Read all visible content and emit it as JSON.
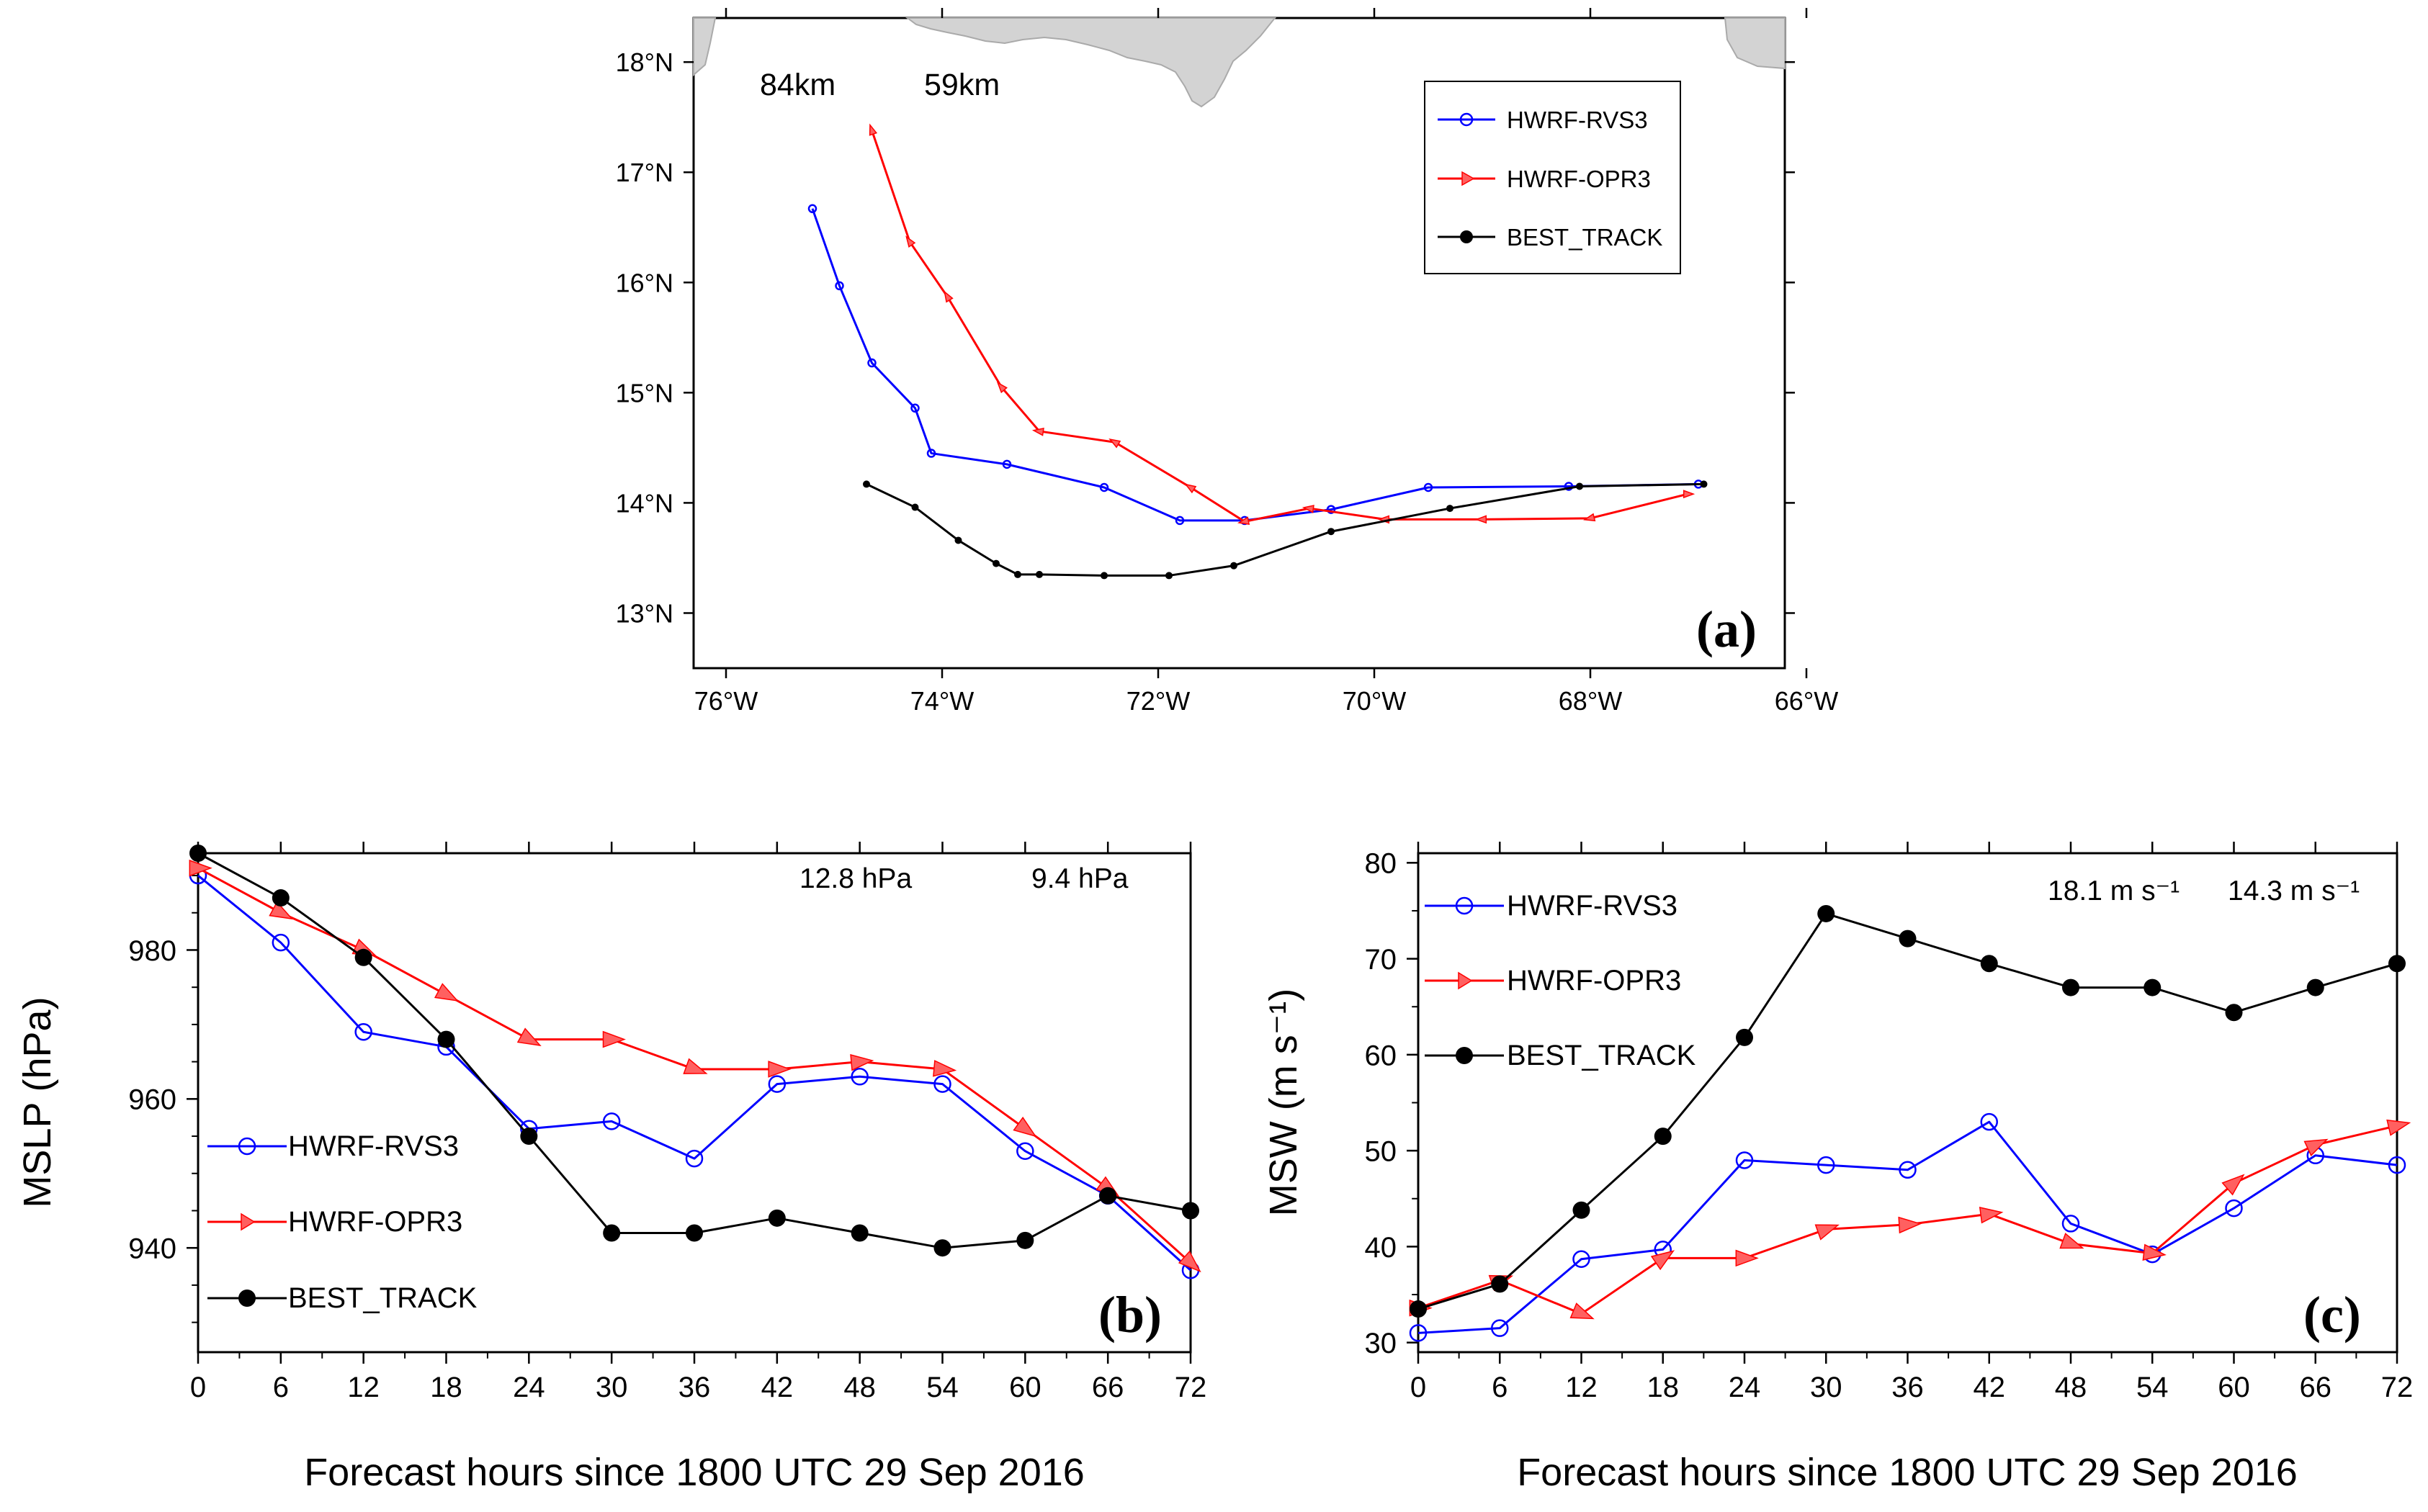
{
  "chart_data": [
    {
      "id": "a",
      "type": "line",
      "panel_label": "(a)",
      "xlim": [
        -76.3,
        -66.2
      ],
      "ylim": [
        12.5,
        18.4
      ],
      "x_ticks": [
        -76,
        -74,
        -72,
        -70,
        -68,
        -66
      ],
      "x_tick_labels": [
        "76°W",
        "74°W",
        "72°W",
        "70°W",
        "68°W",
        "66°W"
      ],
      "y_ticks": [
        13,
        14,
        15,
        16,
        17,
        18
      ],
      "y_tick_labels": [
        "13°N",
        "14°N",
        "15°N",
        "16°N",
        "17°N",
        "18°N"
      ],
      "annotations": [
        {
          "text": "84km",
          "color": "#ff0000"
        },
        {
          "text": "59km",
          "color": "#0000ff"
        }
      ],
      "legend": {
        "placement": "top-right",
        "entries": [
          "HWRF-RVS3",
          "HWRF-OPR3",
          "BEST_TRACK"
        ]
      },
      "series": [
        {
          "name": "HWRF-RVS3",
          "color": "#0000ff",
          "marker": "circle",
          "x": [
            -67.0,
            -68.2,
            -69.5,
            -70.4,
            -71.2,
            -71.8,
            -72.5,
            -73.4,
            -74.1,
            -74.25,
            -74.65,
            -74.95,
            -75.2
          ],
          "y": [
            14.17,
            14.15,
            14.14,
            13.94,
            13.84,
            13.84,
            14.14,
            14.35,
            14.45,
            14.86,
            15.27,
            15.97,
            16.67
          ]
        },
        {
          "name": "HWRF-OPR3",
          "color": "#ff0000",
          "marker": "triangle",
          "x": [
            -67.1,
            -68.0,
            -69.0,
            -69.9,
            -70.6,
            -71.2,
            -71.7,
            -72.4,
            -73.1,
            -73.45,
            -73.95,
            -74.3,
            -74.65
          ],
          "y": [
            14.08,
            13.86,
            13.85,
            13.85,
            13.95,
            13.83,
            14.14,
            14.55,
            14.65,
            15.05,
            15.87,
            16.37,
            17.38
          ]
        },
        {
          "name": "BEST_TRACK",
          "color": "#000000",
          "marker": "dot",
          "x": [
            -66.95,
            -68.1,
            -69.3,
            -70.4,
            -71.3,
            -71.9,
            -72.5,
            -73.1,
            -73.3,
            -73.5,
            -73.85,
            -74.25,
            -74.7
          ],
          "y": [
            14.17,
            14.15,
            13.95,
            13.74,
            13.43,
            13.34,
            13.34,
            13.35,
            13.35,
            13.45,
            13.66,
            13.96,
            14.17
          ]
        }
      ]
    },
    {
      "id": "b",
      "type": "line",
      "panel_label": "(b)",
      "xlabel": "Forecast hours since 1800 UTC 29 Sep 2016",
      "ylabel": "MSLP (hPa)",
      "xlim": [
        0,
        72
      ],
      "ylim": [
        926,
        993
      ],
      "x_ticks": [
        0,
        6,
        12,
        18,
        24,
        30,
        36,
        42,
        48,
        54,
        60,
        66,
        72
      ],
      "y_ticks": [
        940,
        960,
        980
      ],
      "annotations": [
        {
          "text": "12.8 hPa",
          "color": "#ff0000"
        },
        {
          "text": "9.4 hPa",
          "color": "#0000ff"
        }
      ],
      "legend": {
        "placement": "bottom-left",
        "entries": [
          "HWRF-RVS3",
          "HWRF-OPR3",
          "BEST_TRACK"
        ]
      },
      "series": [
        {
          "name": "HWRF-RVS3",
          "color": "#0000ff",
          "marker": "circle",
          "x": [
            0,
            6,
            12,
            18,
            24,
            30,
            36,
            42,
            48,
            54,
            60,
            66,
            72
          ],
          "y": [
            990,
            981,
            969,
            967,
            956,
            957,
            952,
            962,
            963,
            962,
            953,
            947,
            937
          ]
        },
        {
          "name": "HWRF-OPR3",
          "color": "#ff0000",
          "marker": "triangle",
          "x": [
            0,
            6,
            12,
            18,
            24,
            30,
            36,
            42,
            48,
            54,
            60,
            66,
            72
          ],
          "y": [
            991,
            985,
            980,
            974,
            968,
            968,
            964,
            964,
            965,
            964,
            956,
            948,
            938
          ]
        },
        {
          "name": "BEST_TRACK",
          "color": "#000000",
          "marker": "dot",
          "x": [
            0,
            6,
            12,
            18,
            24,
            30,
            36,
            42,
            48,
            54,
            60,
            66,
            72
          ],
          "y": [
            993,
            987,
            979,
            968,
            955,
            942,
            942,
            944,
            942,
            940,
            941,
            947,
            945
          ]
        }
      ]
    },
    {
      "id": "c",
      "type": "line",
      "panel_label": "(c)",
      "xlabel": "Forecast hours since 1800 UTC 29 Sep 2016",
      "ylabel": "MSW (m s⁻¹)",
      "xlim": [
        0,
        72
      ],
      "ylim": [
        29,
        81
      ],
      "x_ticks": [
        0,
        6,
        12,
        18,
        24,
        30,
        36,
        42,
        48,
        54,
        60,
        66,
        72
      ],
      "y_ticks": [
        30,
        40,
        50,
        60,
        70,
        80
      ],
      "annotations": [
        {
          "text": "18.1 m s⁻¹",
          "color": "#ff0000"
        },
        {
          "text": "14.3 m s⁻¹",
          "color": "#0000ff"
        }
      ],
      "legend": {
        "placement": "top-left",
        "entries": [
          "HWRF-RVS3",
          "HWRF-OPR3",
          "BEST_TRACK"
        ]
      },
      "series": [
        {
          "name": "HWRF-RVS3",
          "color": "#0000ff",
          "marker": "circle",
          "x": [
            0,
            6,
            12,
            18,
            24,
            30,
            36,
            42,
            48,
            54,
            60,
            66,
            72
          ],
          "y": [
            31,
            31.5,
            38.7,
            39.7,
            49,
            48.5,
            48,
            53,
            42.4,
            39.2,
            44,
            49.5,
            48.5
          ]
        },
        {
          "name": "HWRF-OPR3",
          "color": "#ff0000",
          "marker": "triangle",
          "x": [
            0,
            6,
            12,
            18,
            24,
            30,
            36,
            42,
            48,
            54,
            60,
            66,
            72
          ],
          "y": [
            33.6,
            36.5,
            33,
            38.8,
            38.8,
            41.8,
            42.3,
            43.4,
            40.3,
            39.3,
            46.6,
            50.6,
            52.6
          ]
        },
        {
          "name": "BEST_TRACK",
          "color": "#000000",
          "marker": "dot",
          "x": [
            0,
            6,
            12,
            18,
            24,
            30,
            36,
            42,
            48,
            54,
            60,
            66,
            72
          ],
          "y": [
            33.5,
            36.1,
            43.8,
            51.5,
            61.8,
            74.7,
            72.1,
            69.5,
            67,
            67,
            64.4,
            67,
            69.5
          ]
        }
      ]
    }
  ]
}
